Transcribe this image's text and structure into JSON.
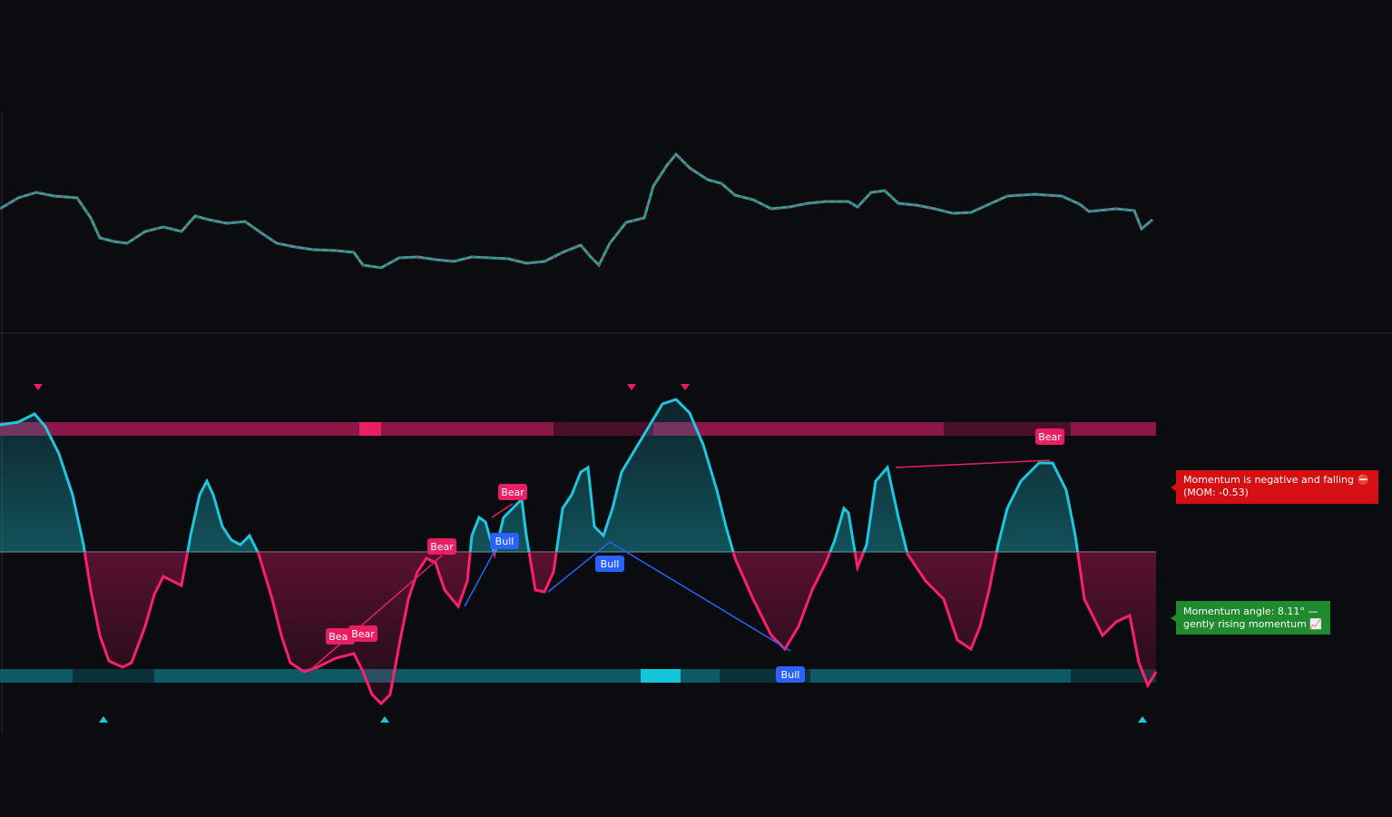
{
  "divergence_labels": [
    "Bear",
    "Bear",
    "Bear",
    "Bear",
    "Bear",
    "Bull",
    "Bull",
    "Bull"
  ],
  "status_boxes": [
    {
      "lines": [
        "Momentum is negative and falling ⛔",
        "(MOM: -0.53)"
      ]
    },
    {
      "lines": [
        "Momentum angle: 8.11° —",
        "gently rising momentum 📈"
      ]
    }
  ]
}
